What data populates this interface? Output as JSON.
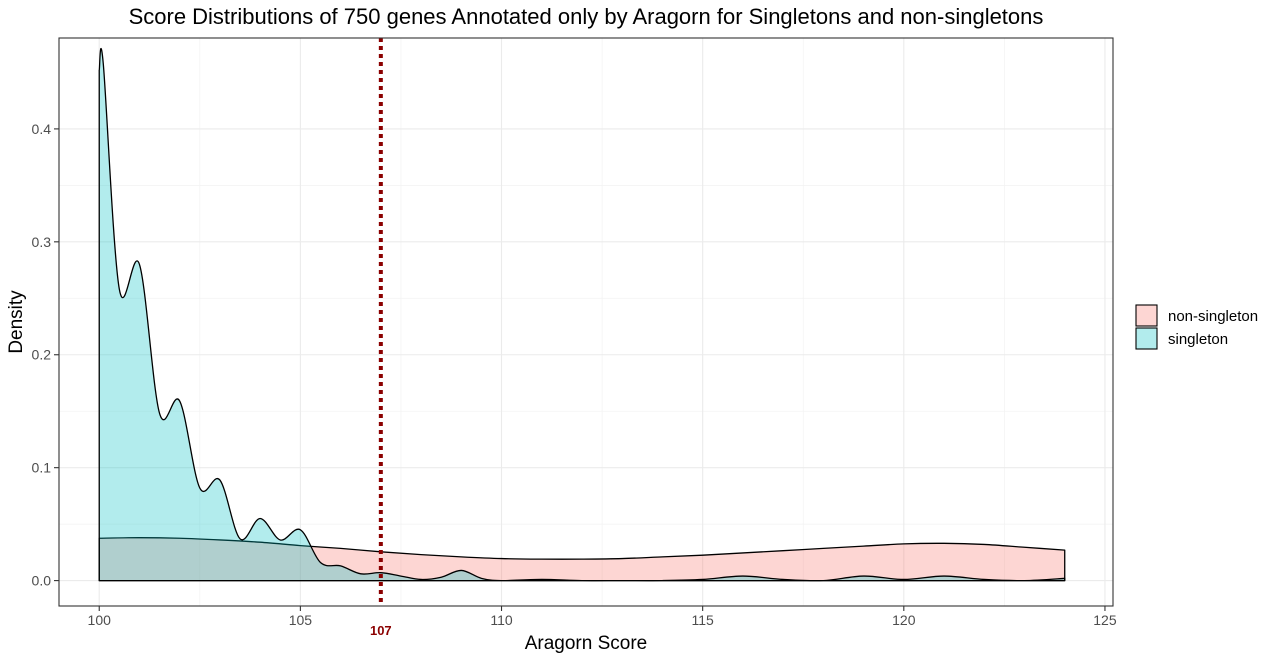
{
  "chart_data": {
    "type": "area",
    "subtype": "density",
    "title": "Score Distributions of 750 genes Annotated only by Aragorn for Singletons and non-singletons",
    "xlabel": "Aragorn Score",
    "ylabel": "Density",
    "xlim": [
      99,
      125.2
    ],
    "ylim": [
      -0.0225,
      0.4805
    ],
    "x_ticks": [
      100,
      105,
      110,
      115,
      120,
      125
    ],
    "y_ticks": [
      0.0,
      0.1,
      0.2,
      0.3,
      0.4
    ],
    "y_tick_labels": [
      "0.0",
      "0.1",
      "0.2",
      "0.3",
      "0.4"
    ],
    "grid": true,
    "legend_position": "right",
    "vline": {
      "x": 107,
      "label": "107",
      "color": "#8b0000",
      "style": "dotted"
    },
    "series": [
      {
        "name": "non-singleton",
        "color": "#f8766d",
        "x": [
          100,
          101,
          102,
          103,
          104,
          105,
          106,
          107,
          108,
          109,
          110,
          111,
          112,
          113,
          114,
          115,
          116,
          117,
          118,
          119,
          120,
          121,
          122,
          123,
          124
        ],
        "y": [
          0.0375,
          0.038,
          0.0375,
          0.036,
          0.034,
          0.031,
          0.0285,
          0.0255,
          0.023,
          0.021,
          0.0195,
          0.019,
          0.019,
          0.0195,
          0.021,
          0.0225,
          0.0245,
          0.0265,
          0.0285,
          0.0305,
          0.0325,
          0.033,
          0.032,
          0.0295,
          0.027
        ]
      },
      {
        "name": "singleton",
        "color": "#00bfc4",
        "x": [
          100,
          100.1,
          100.5,
          101,
          101.5,
          102,
          102.5,
          103,
          103.5,
          104,
          104.5,
          105,
          105.5,
          106,
          106.5,
          107,
          107.5,
          108,
          108.5,
          109,
          109.5,
          110,
          111,
          112,
          113,
          114,
          115,
          116,
          117,
          118,
          119,
          120,
          121,
          122,
          123,
          124
        ],
        "y": [
          0.452,
          0.458,
          0.258,
          0.28,
          0.148,
          0.159,
          0.082,
          0.089,
          0.037,
          0.055,
          0.036,
          0.045,
          0.016,
          0.013,
          0.006,
          0.007,
          0.004,
          0.001,
          0.003,
          0.009,
          0.002,
          0.0,
          0.001,
          0.0,
          0.0,
          0.0,
          0.001,
          0.004,
          0.001,
          0.0,
          0.004,
          0.001,
          0.004,
          0.001,
          0.0,
          0.002
        ]
      }
    ]
  }
}
